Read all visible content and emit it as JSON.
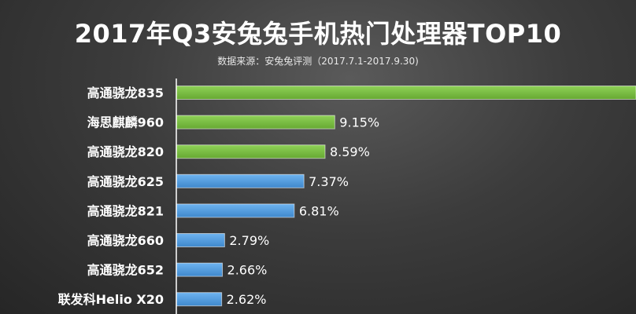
{
  "header": {
    "title": "2017年Q3安兔兔手机热门处理器TOP10",
    "subtitle": "数据来源：安兔兔评测（2017.7.1-2017.9.30)"
  },
  "colors": {
    "green": "#7cc245",
    "blue": "#4f9fe3",
    "axis": "#ffffff"
  },
  "chart_data": {
    "type": "bar",
    "orientation": "horizontal",
    "title": "2017年Q3安兔兔手机热门处理器TOP10",
    "subtitle": "数据来源：安兔兔评测（2017.7.1-2017.9.30)",
    "categories": [
      "高通骁龙835",
      "海思麒麟960",
      "高通骁龙820",
      "高通骁龙625",
      "高通骁龙821",
      "高通骁龙660",
      "高通骁龙652",
      "联发科Helio X20"
    ],
    "values": [
      null,
      9.15,
      8.59,
      7.37,
      6.81,
      2.79,
      2.66,
      2.62
    ],
    "value_labels": [
      "",
      "9.15%",
      "8.59%",
      "7.37%",
      "6.81%",
      "2.79%",
      "2.66%",
      "2.62%"
    ],
    "bar_colors": [
      "green",
      "green",
      "green",
      "blue",
      "blue",
      "blue",
      "blue",
      "blue"
    ],
    "grid": false,
    "legend": "none"
  }
}
